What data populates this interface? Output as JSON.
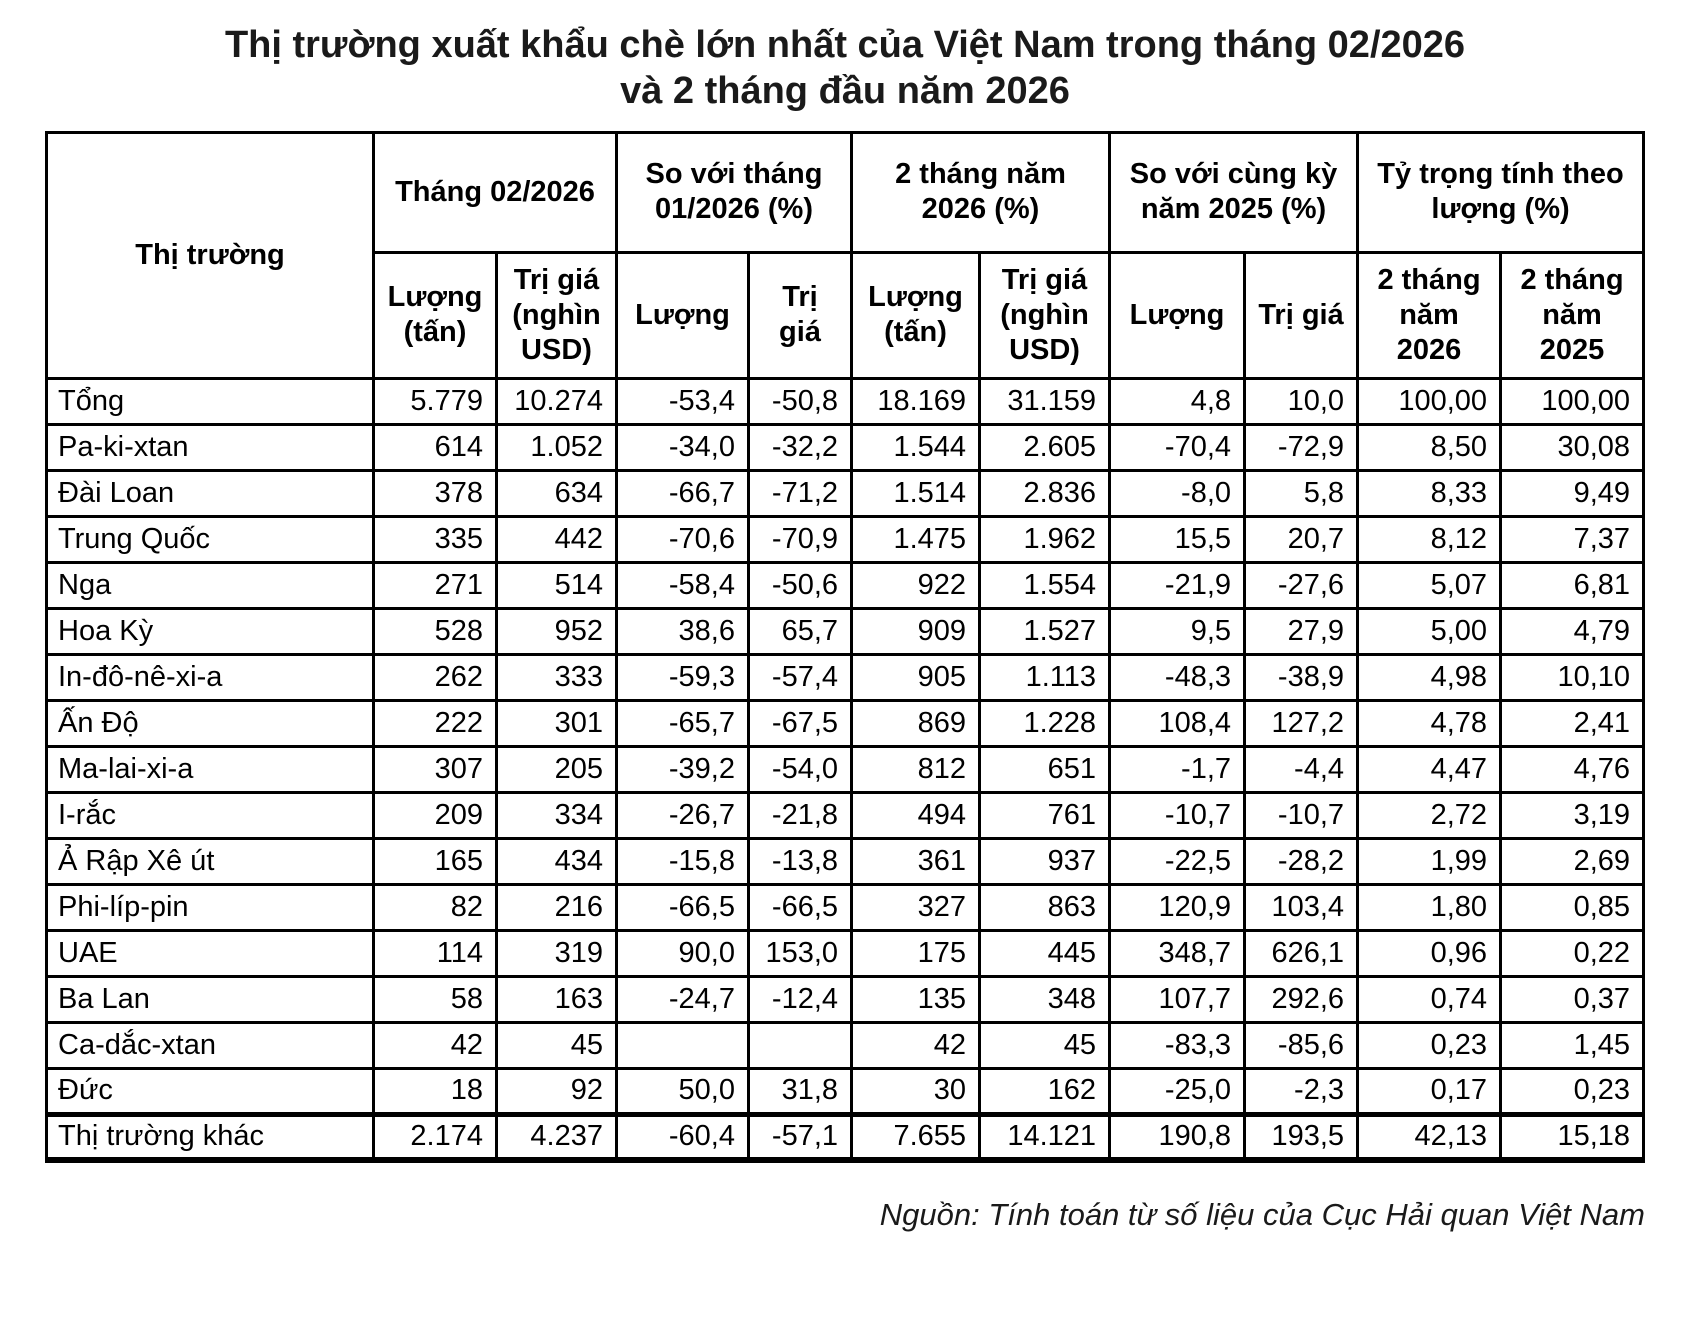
{
  "title": {
    "line1": "Thị trường xuất khẩu chè lớn nhất của Việt Nam trong tháng 02/2026",
    "line2": "và 2 tháng đầu năm 2026"
  },
  "table": {
    "header": {
      "market": "Thị trường",
      "groups": [
        {
          "label": "Tháng 02/2026",
          "sub": [
            "Lượng (tấn)",
            "Trị giá (nghìn USD)"
          ]
        },
        {
          "label": "So với tháng 01/2026 (%)",
          "sub": [
            "Lượng",
            "Trị giá"
          ]
        },
        {
          "label": "2 tháng năm 2026 (%)",
          "sub": [
            "Lượng (tấn)",
            "Trị giá (nghìn USD)"
          ]
        },
        {
          "label": "So với cùng kỳ năm 2025 (%)",
          "sub": [
            "Lượng",
            "Trị giá"
          ]
        },
        {
          "label": "Tỷ trọng tính theo lượng (%)",
          "sub": [
            "2 tháng năm 2026",
            "2 tháng năm 2025"
          ]
        }
      ]
    },
    "rows": [
      {
        "market": "Tổng",
        "values": [
          "5.779",
          "10.274",
          "-53,4",
          "-50,8",
          "18.169",
          "31.159",
          "4,8",
          "10,0",
          "100,00",
          "100,00"
        ]
      },
      {
        "market": "Pa-ki-xtan",
        "values": [
          "614",
          "1.052",
          "-34,0",
          "-32,2",
          "1.544",
          "2.605",
          "-70,4",
          "-72,9",
          "8,50",
          "30,08"
        ]
      },
      {
        "market": "Đài Loan",
        "values": [
          "378",
          "634",
          "-66,7",
          "-71,2",
          "1.514",
          "2.836",
          "-8,0",
          "5,8",
          "8,33",
          "9,49"
        ]
      },
      {
        "market": "Trung Quốc",
        "values": [
          "335",
          "442",
          "-70,6",
          "-70,9",
          "1.475",
          "1.962",
          "15,5",
          "20,7",
          "8,12",
          "7,37"
        ]
      },
      {
        "market": "Nga",
        "values": [
          "271",
          "514",
          "-58,4",
          "-50,6",
          "922",
          "1.554",
          "-21,9",
          "-27,6",
          "5,07",
          "6,81"
        ]
      },
      {
        "market": "Hoa Kỳ",
        "values": [
          "528",
          "952",
          "38,6",
          "65,7",
          "909",
          "1.527",
          "9,5",
          "27,9",
          "5,00",
          "4,79"
        ]
      },
      {
        "market": "In-đô-nê-xi-a",
        "values": [
          "262",
          "333",
          "-59,3",
          "-57,4",
          "905",
          "1.113",
          "-48,3",
          "-38,9",
          "4,98",
          "10,10"
        ]
      },
      {
        "market": "Ấn Độ",
        "values": [
          "222",
          "301",
          "-65,7",
          "-67,5",
          "869",
          "1.228",
          "108,4",
          "127,2",
          "4,78",
          "2,41"
        ]
      },
      {
        "market": "Ma-lai-xi-a",
        "values": [
          "307",
          "205",
          "-39,2",
          "-54,0",
          "812",
          "651",
          "-1,7",
          "-4,4",
          "4,47",
          "4,76"
        ]
      },
      {
        "market": "I-rắc",
        "values": [
          "209",
          "334",
          "-26,7",
          "-21,8",
          "494",
          "761",
          "-10,7",
          "-10,7",
          "2,72",
          "3,19"
        ]
      },
      {
        "market": "Ả Rập Xê út",
        "values": [
          "165",
          "434",
          "-15,8",
          "-13,8",
          "361",
          "937",
          "-22,5",
          "-28,2",
          "1,99",
          "2,69"
        ]
      },
      {
        "market": "Phi-líp-pin",
        "values": [
          "82",
          "216",
          "-66,5",
          "-66,5",
          "327",
          "863",
          "120,9",
          "103,4",
          "1,80",
          "0,85"
        ]
      },
      {
        "market": "UAE",
        "values": [
          "114",
          "319",
          "90,0",
          "153,0",
          "175",
          "445",
          "348,7",
          "626,1",
          "0,96",
          "0,22"
        ]
      },
      {
        "market": "Ba Lan",
        "values": [
          "58",
          "163",
          "-24,7",
          "-12,4",
          "135",
          "348",
          "107,7",
          "292,6",
          "0,74",
          "0,37"
        ]
      },
      {
        "market": "Ca-dắc-xtan",
        "values": [
          "42",
          "45",
          "",
          "",
          "42",
          "45",
          "-83,3",
          "-85,6",
          "0,23",
          "1,45"
        ]
      },
      {
        "market": "Đức",
        "values": [
          "18",
          "92",
          "50,0",
          "31,8",
          "30",
          "162",
          "-25,0",
          "-2,3",
          "0,17",
          "0,23"
        ]
      },
      {
        "market": "Thị trường khác",
        "values": [
          "2.174",
          "4.237",
          "-60,4",
          "-57,1",
          "7.655",
          "14.121",
          "190,8",
          "193,5",
          "42,13",
          "15,18"
        ]
      }
    ]
  },
  "footer": {
    "source": "Nguồn: Tính toán từ số liệu của Cục Hải quan Việt Nam"
  }
}
